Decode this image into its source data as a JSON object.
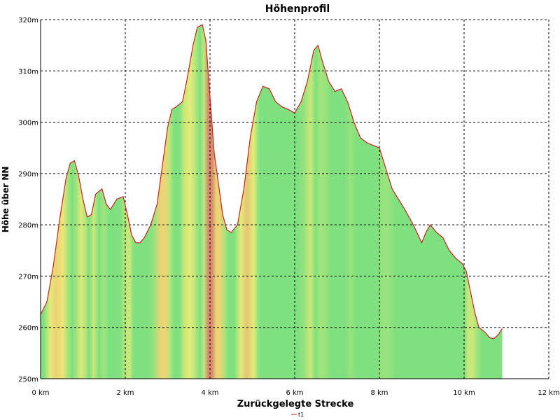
{
  "chart_data": {
    "type": "area",
    "title": "Höhenprofil",
    "xlabel": "Zurückgelegte Strecke",
    "ylabel": "Höhe über NN",
    "xlim": [
      0,
      12
    ],
    "ylim": [
      250,
      320
    ],
    "x_ticks": [
      0,
      2,
      4,
      6,
      8,
      10,
      12
    ],
    "x_tick_labels": [
      "0 km",
      "2 km",
      "4 km",
      "6 km",
      "8 km",
      "10 km",
      "12 km"
    ],
    "y_ticks": [
      250,
      260,
      270,
      280,
      290,
      300,
      310,
      320
    ],
    "y_tick_labels": [
      "250m",
      "260m",
      "270m",
      "280m",
      "290m",
      "300m",
      "310m",
      "320m"
    ],
    "grid": true,
    "legend_position": "bottom-center",
    "series": [
      {
        "name": "t1",
        "color": "#cc2222",
        "fill_color": "#7ee07e",
        "x": [
          0.0,
          0.15,
          0.3,
          0.45,
          0.6,
          0.7,
          0.8,
          0.9,
          1.0,
          1.1,
          1.2,
          1.3,
          1.45,
          1.55,
          1.65,
          1.8,
          1.95,
          2.05,
          2.15,
          2.25,
          2.35,
          2.45,
          2.6,
          2.75,
          2.9,
          3.0,
          3.1,
          3.2,
          3.35,
          3.45,
          3.6,
          3.7,
          3.82,
          3.9,
          4.0,
          4.1,
          4.2,
          4.3,
          4.4,
          4.5,
          4.65,
          4.8,
          4.95,
          5.1,
          5.25,
          5.4,
          5.55,
          5.7,
          5.85,
          6.0,
          6.15,
          6.3,
          6.45,
          6.55,
          6.65,
          6.8,
          6.95,
          7.1,
          7.25,
          7.4,
          7.55,
          7.7,
          7.85,
          8.0,
          8.15,
          8.3,
          8.45,
          8.6,
          8.8,
          9.0,
          9.1,
          9.2,
          9.35,
          9.5,
          9.65,
          9.8,
          9.95,
          10.05,
          10.15,
          10.25,
          10.35,
          10.5,
          10.6,
          10.7,
          10.8,
          10.9
        ],
        "y": [
          262.5,
          265,
          272,
          281,
          289,
          292,
          292.5,
          289.5,
          285,
          281.5,
          282,
          286,
          287,
          284,
          283,
          285,
          285.5,
          282,
          278,
          276.5,
          276.5,
          277.5,
          280,
          284,
          293,
          299,
          302.5,
          303,
          304,
          308,
          315,
          318.5,
          319,
          316,
          305,
          294,
          288,
          282,
          279,
          278.5,
          280,
          287,
          297,
          304,
          307,
          306.5,
          304,
          303,
          302.5,
          301.8,
          304,
          308,
          314,
          315,
          312,
          308,
          306,
          306.5,
          304,
          300,
          297,
          296,
          295.5,
          295,
          291,
          287,
          285,
          283,
          280,
          276.5,
          278.5,
          280,
          278.5,
          277.5,
          275,
          273.5,
          272.5,
          271,
          267,
          263,
          260,
          259,
          258,
          257.8,
          258.5,
          259.8
        ]
      }
    ]
  }
}
